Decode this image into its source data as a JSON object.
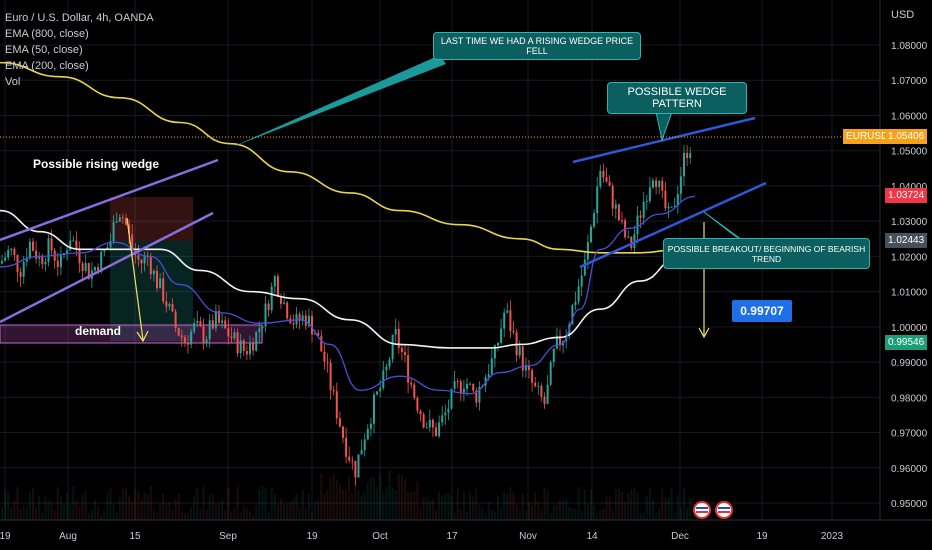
{
  "symbol_line": "Euro / U.S. Dollar, 4h, OANDA",
  "indicators": [
    "EMA (800, close)",
    "EMA (50, close)",
    "EMA (200, close)",
    "Vol"
  ],
  "currency": "USD",
  "colors": {
    "bg": "#000000",
    "grid": "#161a22",
    "candle_up": "#26a69a",
    "candle_down": "#ef5350",
    "ema800": "#e9d44a",
    "ema50": "#4a4ed8",
    "ema200": "#f2f2f2",
    "wedge_left": "#8a6ee0",
    "wedge_right": "#2f58d8",
    "callout_line": "#1a9a9a",
    "arrow": "#f0e060"
  },
  "annotations": {
    "callout1": "LAST TIME WE HAD A RISING WEDGE PRICE FELL",
    "callout2": "POSSIBLE WEDGE PATTERN",
    "callout3": "POSSIBLE BREAKOUT/ BEGINNING OF BEARISH TREND",
    "rising_wedge": "Possible rising wedge",
    "demand": "demand",
    "target": "0.99707"
  },
  "price_tags": [
    {
      "label": "EURUSD",
      "value": "1.05406",
      "color": "#f7a21b",
      "price": 1.054
    },
    {
      "value": "1.03724",
      "color": "#f23645",
      "price": 1.0372
    },
    {
      "value": "1.02443",
      "color": "#4a4f5c",
      "price": 1.0244
    },
    {
      "value": "0.99546",
      "color": "#1b9e77",
      "price": 0.9955
    }
  ],
  "chart_data": {
    "type": "line",
    "y_range": [
      0.945,
      1.09
    ],
    "y_ticks": [
      "1.08000",
      "1.07000",
      "1.06000",
      "1.05000",
      "1.04000",
      "1.03000",
      "1.02000",
      "1.01000",
      "1.00000",
      "0.99000",
      "0.98000",
      "0.97000",
      "0.96000",
      "0.95000"
    ],
    "y_tick_values": [
      1.08,
      1.07,
      1.06,
      1.05,
      1.04,
      1.03,
      1.02,
      1.01,
      1.0,
      0.99,
      0.98,
      0.97,
      0.96,
      0.95
    ],
    "x_ticks": [
      "19",
      "Aug",
      "15",
      "Sep",
      "19",
      "Oct",
      "17",
      "Nov",
      "14",
      "Dec",
      "19",
      "2023"
    ],
    "price_path": [
      [
        0,
        1.018
      ],
      [
        10,
        1.022
      ],
      [
        20,
        1.016
      ],
      [
        30,
        1.024
      ],
      [
        40,
        1.019
      ],
      [
        50,
        1.023
      ],
      [
        60,
        1.017
      ],
      [
        70,
        1.026
      ],
      [
        80,
        1.02
      ],
      [
        90,
        1.015
      ],
      [
        100,
        1.019
      ],
      [
        110,
        1.024
      ],
      [
        118,
        1.034
      ],
      [
        125,
        1.03
      ],
      [
        132,
        1.022
      ],
      [
        140,
        1.018
      ],
      [
        148,
        1.02
      ],
      [
        155,
        1.014
      ],
      [
        165,
        1.008
      ],
      [
        175,
        1.0
      ],
      [
        185,
        0.996
      ],
      [
        195,
        1.0
      ],
      [
        205,
        0.997
      ],
      [
        215,
        1.002
      ],
      [
        225,
        0.999
      ],
      [
        235,
        0.996
      ],
      [
        245,
        0.993
      ],
      [
        255,
        0.997
      ],
      [
        265,
        1.004
      ],
      [
        275,
        1.014
      ],
      [
        285,
        1.006
      ],
      [
        295,
        1.001
      ],
      [
        305,
        1.003
      ],
      [
        315,
        0.999
      ],
      [
        325,
        0.99
      ],
      [
        335,
        0.978
      ],
      [
        345,
        0.967
      ],
      [
        355,
        0.959
      ],
      [
        365,
        0.97
      ],
      [
        375,
        0.979
      ],
      [
        385,
        0.986
      ],
      [
        395,
        0.998
      ],
      [
        405,
        0.99
      ],
      [
        415,
        0.98
      ],
      [
        425,
        0.973
      ],
      [
        435,
        0.97
      ],
      [
        445,
        0.975
      ],
      [
        455,
        0.982
      ],
      [
        465,
        0.985
      ],
      [
        475,
        0.98
      ],
      [
        485,
        0.986
      ],
      [
        495,
        0.992
      ],
      [
        505,
        1.005
      ],
      [
        515,
        0.996
      ],
      [
        525,
        0.988
      ],
      [
        535,
        0.982
      ],
      [
        545,
        0.978
      ],
      [
        555,
        0.994
      ],
      [
        565,
        0.998
      ],
      [
        575,
        1.008
      ],
      [
        585,
        1.018
      ],
      [
        592,
        1.03
      ],
      [
        600,
        1.045
      ],
      [
        607,
        1.04
      ],
      [
        615,
        1.034
      ],
      [
        622,
        1.028
      ],
      [
        630,
        1.022
      ],
      [
        638,
        1.03
      ],
      [
        646,
        1.038
      ],
      [
        654,
        1.045
      ],
      [
        662,
        1.036
      ],
      [
        670,
        1.03
      ],
      [
        678,
        1.04
      ],
      [
        686,
        1.05
      ],
      [
        692,
        1.052
      ]
    ],
    "ema800": [
      [
        0,
        1.075
      ],
      [
        60,
        1.071
      ],
      [
        120,
        1.065
      ],
      [
        180,
        1.058
      ],
      [
        230,
        1.052
      ],
      [
        290,
        1.044
      ],
      [
        350,
        1.038
      ],
      [
        400,
        1.033
      ],
      [
        460,
        1.029
      ],
      [
        520,
        1.025
      ],
      [
        560,
        1.022
      ],
      [
        600,
        1.021
      ],
      [
        640,
        1.021
      ],
      [
        680,
        1.022
      ],
      [
        695,
        1.023
      ]
    ],
    "ema200": [
      [
        0,
        1.033
      ],
      [
        40,
        1.027
      ],
      [
        80,
        1.022
      ],
      [
        120,
        1.022
      ],
      [
        160,
        1.022
      ],
      [
        200,
        1.016
      ],
      [
        250,
        1.01
      ],
      [
        300,
        1.008
      ],
      [
        350,
        1.002
      ],
      [
        400,
        0.995
      ],
      [
        450,
        0.994
      ],
      [
        490,
        0.994
      ],
      [
        520,
        0.995
      ],
      [
        560,
        0.997
      ],
      [
        600,
        1.005
      ],
      [
        640,
        1.013
      ],
      [
        680,
        1.02
      ],
      [
        695,
        1.024
      ]
    ],
    "ema50": [
      [
        0,
        1.017
      ],
      [
        40,
        1.02
      ],
      [
        80,
        1.021
      ],
      [
        115,
        1.024
      ],
      [
        150,
        1.02
      ],
      [
        180,
        1.012
      ],
      [
        220,
        1.004
      ],
      [
        260,
        1.001
      ],
      [
        300,
        1.002
      ],
      [
        330,
        0.995
      ],
      [
        360,
        0.982
      ],
      [
        400,
        0.986
      ],
      [
        440,
        0.982
      ],
      [
        470,
        0.981
      ],
      [
        500,
        0.987
      ],
      [
        530,
        0.989
      ],
      [
        560,
        0.995
      ],
      [
        580,
        1.005
      ],
      [
        600,
        1.022
      ],
      [
        630,
        1.028
      ],
      [
        660,
        1.032
      ],
      [
        695,
        1.037
      ]
    ]
  }
}
